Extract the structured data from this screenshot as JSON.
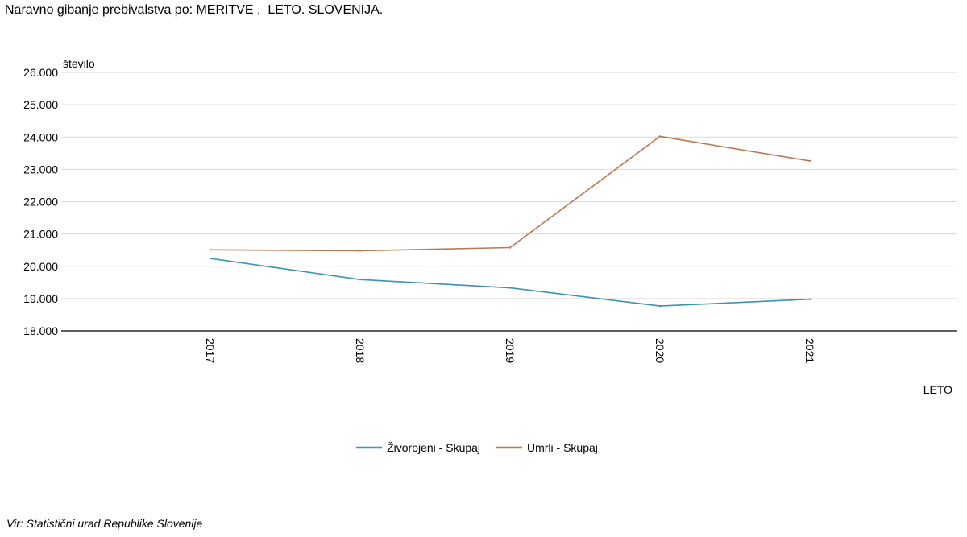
{
  "title": "Naravno gibanje prebivalstva po: MERITVE ,  LETO. SLOVENIJA.",
  "source": "Vir: Statistični urad Republike Slovenije",
  "chart_data": {
    "type": "line",
    "ylabel": "število",
    "xlabel": "LETO",
    "ylim": [
      18000,
      26000
    ],
    "yticks": [
      "18.000",
      "19.000",
      "20.000",
      "21.000",
      "22.000",
      "23.000",
      "24.000",
      "25.000",
      "26.000"
    ],
    "grid": true,
    "legend_position": "bottom",
    "categories": [
      "2017",
      "2018",
      "2019",
      "2020",
      "2021"
    ],
    "series": [
      {
        "name": "Živorojeni - Skupaj",
        "color": "#3d93b0",
        "values": [
          20240,
          19590,
          19330,
          18770,
          18980
        ]
      },
      {
        "name": "Umrli - Skupaj",
        "color": "#b87a55",
        "values": [
          20510,
          20480,
          20580,
          24020,
          23260
        ]
      }
    ]
  }
}
